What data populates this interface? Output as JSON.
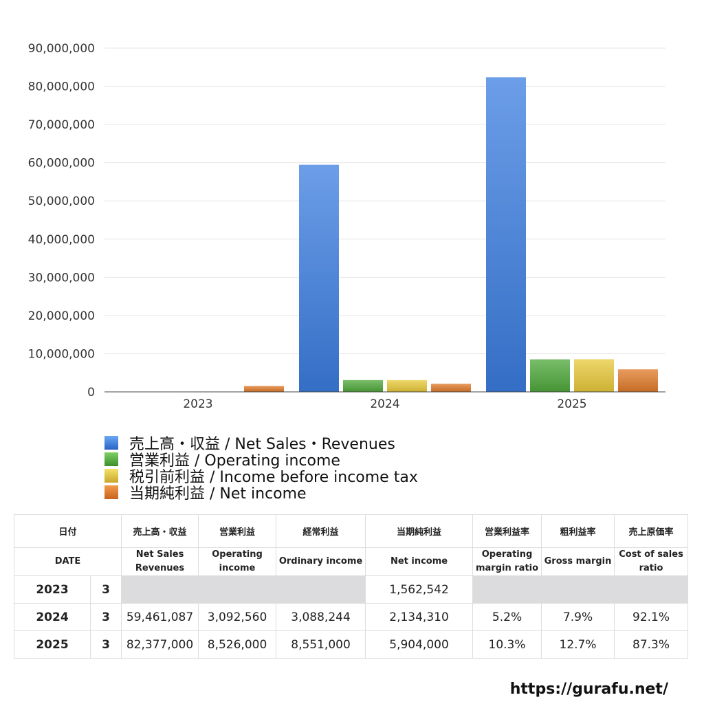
{
  "chart_data": {
    "type": "bar",
    "categories": [
      "2023",
      "2024",
      "2025"
    ],
    "series": [
      {
        "name": "売上高・収益 / Net Sales・Revenues",
        "color": "#3b7de0",
        "values": [
          null,
          59461087,
          82377000
        ]
      },
      {
        "name": "営業利益 / Operating income",
        "color": "#4ea83a",
        "values": [
          null,
          3092560,
          8526000
        ]
      },
      {
        "name": "税引前利益 / Income before income tax",
        "color": "#e8c93a",
        "values": [
          null,
          3088244,
          8551000
        ]
      },
      {
        "name": "当期純利益 / Net income",
        "color": "#e07b2a",
        "values": [
          1562542,
          2134310,
          5904000
        ]
      }
    ],
    "ylim": [
      0,
      90000000
    ],
    "yticks": [
      "0",
      "10,000,000",
      "20,000,000",
      "30,000,000",
      "40,000,000",
      "50,000,000",
      "60,000,000",
      "70,000,000",
      "80,000,000",
      "90,000,000"
    ],
    "grid": true,
    "legend": "bottom-left"
  },
  "table": {
    "header_jp": [
      "日付",
      "売上高・収益",
      "営業利益",
      "経常利益",
      "当期純利益",
      "営業利益率",
      "粗利益率",
      "売上原価率"
    ],
    "header_en": [
      "DATE",
      "Net Sales Revenues",
      "Operating income",
      "Ordinary income",
      "Net income",
      "Operating margin ratio",
      "Gross margin",
      "Cost of sales ratio"
    ],
    "rows": [
      {
        "year": "2023",
        "month": "3",
        "cells": [
          "",
          "",
          "",
          "1,562,542",
          "",
          "",
          ""
        ]
      },
      {
        "year": "2024",
        "month": "3",
        "cells": [
          "59,461,087",
          "3,092,560",
          "3,088,244",
          "2,134,310",
          "5.2%",
          "7.9%",
          "92.1%"
        ]
      },
      {
        "year": "2025",
        "month": "3",
        "cells": [
          "82,377,000",
          "8,526,000",
          "8,551,000",
          "5,904,000",
          "10.3%",
          "12.7%",
          "87.3%"
        ]
      }
    ]
  },
  "footer": {
    "site": "https://gurafu.net/"
  }
}
